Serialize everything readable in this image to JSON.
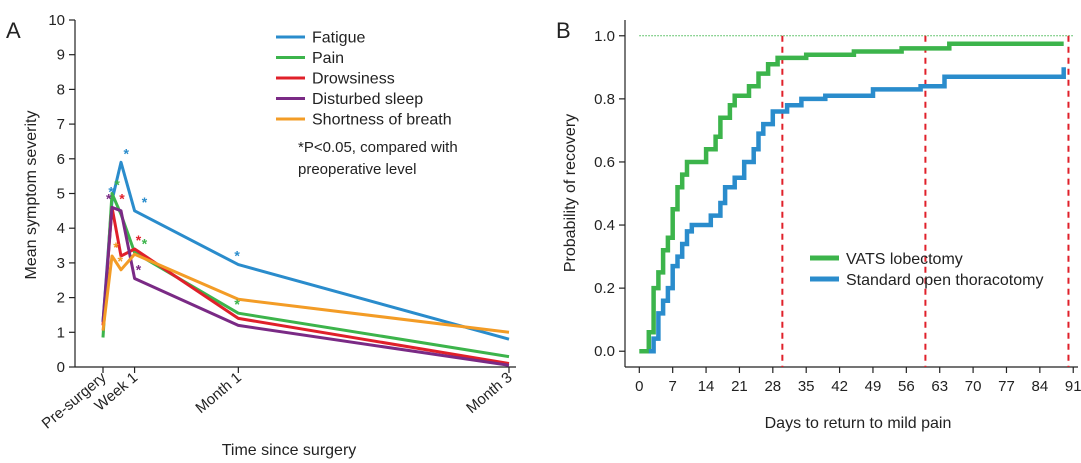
{
  "chart_data": [
    {
      "panel_label": "A",
      "type": "line",
      "xlabel": "Time since surgery",
      "ylabel": "Mean symptom severity",
      "ylim": [
        0,
        10
      ],
      "yticks": [
        0,
        1,
        2,
        3,
        4,
        5,
        6,
        7,
        8,
        9,
        10
      ],
      "xtick_labels": [
        {
          "label": "Pre-surgery",
          "day": 0
        },
        {
          "label": "Week 1",
          "day": 7
        },
        {
          "label": "Month 1",
          "day": 30
        },
        {
          "label": "Month 3",
          "day": 90
        }
      ],
      "xlim": [
        0,
        90
      ],
      "legend_position": "top-right",
      "annotation": [
        "*P<0.05, compared with",
        "preoperative level"
      ],
      "series": [
        {
          "name": "Fatigue",
          "color": "#2a8ccc",
          "x": [
            0,
            2,
            4,
            7,
            30,
            90
          ],
          "y": [
            1.3,
            4.8,
            5.9,
            4.5,
            2.95,
            0.8
          ],
          "stars_at": [
            2,
            4,
            7,
            30
          ]
        },
        {
          "name": "Pain",
          "color": "#3cb44b",
          "x": [
            0,
            2,
            4,
            7,
            30,
            90
          ],
          "y": [
            0.85,
            5.0,
            4.4,
            3.3,
            1.55,
            0.3
          ],
          "stars_at": [
            2,
            7,
            30
          ]
        },
        {
          "name": "Drowsiness",
          "color": "#e0202a",
          "x": [
            0,
            2,
            4,
            7,
            30,
            90
          ],
          "y": [
            1.2,
            4.6,
            3.2,
            3.4,
            1.4,
            0.1
          ],
          "stars_at": [
            2,
            4,
            7
          ]
        },
        {
          "name": "Disturbed sleep",
          "color": "#7a2a85",
          "x": [
            0,
            2,
            4,
            7,
            30,
            90
          ],
          "y": [
            1.3,
            4.6,
            4.5,
            2.55,
            1.2,
            0.05
          ],
          "stars_at": [
            2,
            7
          ]
        },
        {
          "name": "Shortness of breath",
          "color": "#f39c26",
          "x": [
            0,
            2,
            4,
            7,
            30,
            90
          ],
          "y": [
            1.05,
            3.2,
            2.8,
            3.25,
            1.95,
            1.0
          ],
          "stars_at": [
            2,
            4
          ]
        }
      ]
    },
    {
      "panel_label": "B",
      "type": "line",
      "subtype": "step",
      "xlabel": "Days to return to mild pain",
      "ylabel": "Probability of recovery",
      "xlim": [
        -3,
        92
      ],
      "ylim": [
        -0.05,
        1.05
      ],
      "xticks": [
        0,
        7,
        14,
        21,
        28,
        35,
        42,
        49,
        56,
        63,
        70,
        77,
        84,
        91
      ],
      "yticks": [
        0.0,
        0.2,
        0.4,
        0.6,
        0.8,
        1.0
      ],
      "ytick_labels": [
        "0.0",
        "0.2",
        "0.4",
        "0.6",
        "0.8",
        "1.0"
      ],
      "reference_hline": {
        "y": 1.0,
        "color": "#3cb44b",
        "style": "dotted"
      },
      "reference_vlines": {
        "x": [
          30,
          60,
          90
        ],
        "color": "#e0202a",
        "style": "dashed"
      },
      "legend_position": "bottom-right",
      "series": [
        {
          "name": "VATS lobectomy",
          "color": "#3cb44b",
          "points": [
            [
              0,
              0
            ],
            [
              2,
              0
            ],
            [
              2,
              0.06
            ],
            [
              3,
              0.06
            ],
            [
              3,
              0.2
            ],
            [
              4,
              0.2
            ],
            [
              4,
              0.25
            ],
            [
              5,
              0.25
            ],
            [
              5,
              0.32
            ],
            [
              6,
              0.32
            ],
            [
              6,
              0.36
            ],
            [
              7,
              0.36
            ],
            [
              7,
              0.45
            ],
            [
              8,
              0.45
            ],
            [
              8,
              0.52
            ],
            [
              9,
              0.52
            ],
            [
              9,
              0.56
            ],
            [
              10,
              0.56
            ],
            [
              10,
              0.6
            ],
            [
              14,
              0.6
            ],
            [
              14,
              0.64
            ],
            [
              16,
              0.64
            ],
            [
              16,
              0.68
            ],
            [
              17,
              0.68
            ],
            [
              17,
              0.74
            ],
            [
              19,
              0.74
            ],
            [
              19,
              0.78
            ],
            [
              20,
              0.78
            ],
            [
              20,
              0.81
            ],
            [
              23,
              0.81
            ],
            [
              23,
              0.84
            ],
            [
              25,
              0.84
            ],
            [
              25,
              0.88
            ],
            [
              27,
              0.88
            ],
            [
              27,
              0.91
            ],
            [
              29,
              0.91
            ],
            [
              29,
              0.93
            ],
            [
              35,
              0.93
            ],
            [
              35,
              0.94
            ],
            [
              45,
              0.94
            ],
            [
              45,
              0.95
            ],
            [
              55,
              0.95
            ],
            [
              55,
              0.96
            ],
            [
              65,
              0.96
            ],
            [
              65,
              0.975
            ],
            [
              89,
              0.975
            ]
          ]
        },
        {
          "name": "Standard open thoracotomy",
          "color": "#2a8ccc",
          "points": [
            [
              2,
              0
            ],
            [
              3,
              0
            ],
            [
              3,
              0.04
            ],
            [
              4,
              0.04
            ],
            [
              4,
              0.12
            ],
            [
              5,
              0.12
            ],
            [
              5,
              0.16
            ],
            [
              6,
              0.16
            ],
            [
              6,
              0.2
            ],
            [
              7,
              0.2
            ],
            [
              7,
              0.27
            ],
            [
              8,
              0.27
            ],
            [
              8,
              0.3
            ],
            [
              9,
              0.3
            ],
            [
              9,
              0.34
            ],
            [
              10,
              0.34
            ],
            [
              10,
              0.38
            ],
            [
              11,
              0.38
            ],
            [
              11,
              0.4
            ],
            [
              15,
              0.4
            ],
            [
              15,
              0.43
            ],
            [
              17,
              0.43
            ],
            [
              17,
              0.47
            ],
            [
              18,
              0.47
            ],
            [
              18,
              0.52
            ],
            [
              20,
              0.52
            ],
            [
              20,
              0.55
            ],
            [
              22,
              0.55
            ],
            [
              22,
              0.6
            ],
            [
              24,
              0.6
            ],
            [
              24,
              0.64
            ],
            [
              25,
              0.64
            ],
            [
              25,
              0.69
            ],
            [
              26,
              0.69
            ],
            [
              26,
              0.72
            ],
            [
              28,
              0.72
            ],
            [
              28,
              0.76
            ],
            [
              31,
              0.76
            ],
            [
              31,
              0.78
            ],
            [
              34,
              0.78
            ],
            [
              34,
              0.8
            ],
            [
              39,
              0.8
            ],
            [
              39,
              0.81
            ],
            [
              49,
              0.81
            ],
            [
              49,
              0.83
            ],
            [
              59,
              0.83
            ],
            [
              59,
              0.84
            ],
            [
              64,
              0.84
            ],
            [
              64,
              0.87
            ],
            [
              89,
              0.87
            ],
            [
              89,
              0.9
            ]
          ]
        }
      ]
    }
  ]
}
